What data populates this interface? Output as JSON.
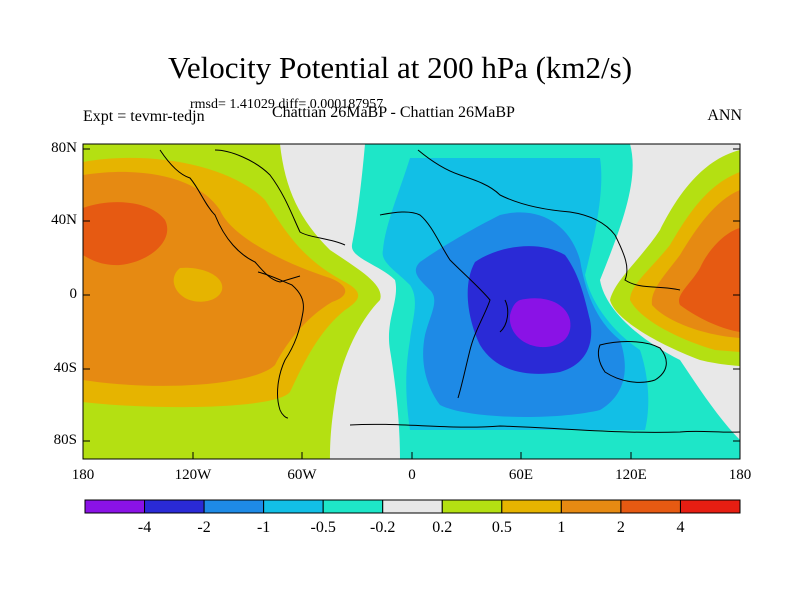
{
  "title": "Velocity Potential at 200 hPa (km2/s)",
  "stats": "rmsd= 1.41029 diff= 0.000187957",
  "left_label": "Expt = tevmr-tedjn",
  "center_label": "Chattian  26MaBP - Chattian  26MaBP",
  "right_label": "ANN",
  "lat_ticks": [
    "80N",
    "40N",
    "0",
    "40S",
    "80S"
  ],
  "lon_ticks": [
    "180",
    "120W",
    "60W",
    "0",
    "60E",
    "120E",
    "180"
  ],
  "colorbar": {
    "labels": [
      "-4",
      "-2",
      "-1",
      "-0.5",
      "-0.2",
      "0.2",
      "0.5",
      "1",
      "2",
      "4"
    ],
    "colors": [
      "#8a12e6",
      "#2a2ad6",
      "#1e8ae6",
      "#12bfe6",
      "#1ee6c8",
      "#e8e8e8",
      "#b4e012",
      "#e6b400",
      "#e68a12",
      "#e65a12",
      "#e61e12"
    ]
  }
}
